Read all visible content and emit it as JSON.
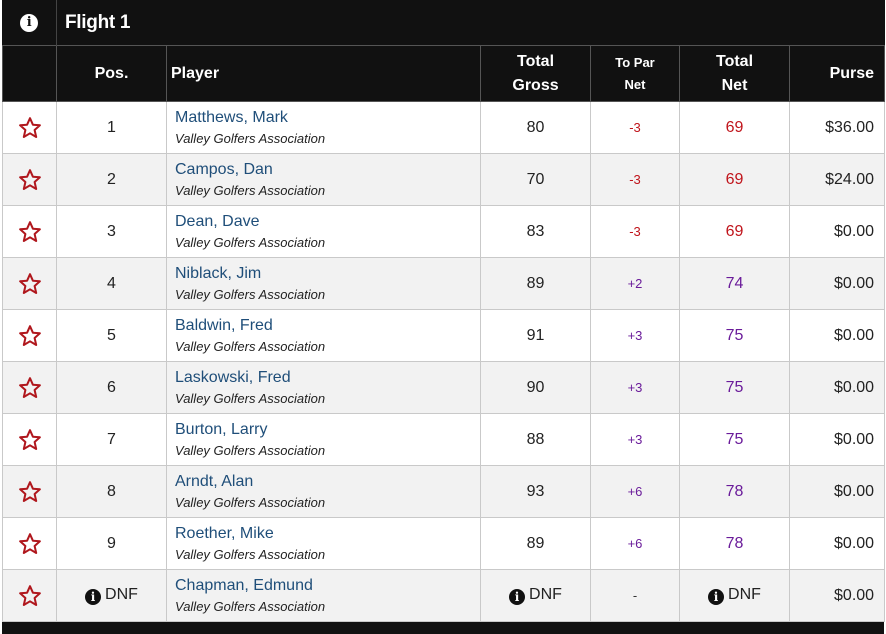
{
  "header": {
    "flight_title": "Flight 1",
    "info_icon": "info-icon"
  },
  "columns": {
    "pos": "Pos.",
    "player": "Player",
    "total_gross_1": "Total",
    "total_gross_2": "Gross",
    "to_par_net_1": "To Par",
    "to_par_net_2": "Net",
    "total_net_1": "Total",
    "total_net_2": "Net",
    "purse": "Purse"
  },
  "colors": {
    "header_bg": "#111111",
    "star": "#b0171d",
    "under_par": "#c0141b",
    "over_par": "#6a1b9a",
    "player_link": "#1f4e79"
  },
  "rows": [
    {
      "pos": "1",
      "name": "Matthews, Mark",
      "club": "Valley Golfers Association",
      "gross": "80",
      "to_par": "-3",
      "net": "69",
      "purse": "$36.00"
    },
    {
      "pos": "2",
      "name": "Campos, Dan",
      "club": "Valley Golfers Association",
      "gross": "70",
      "to_par": "-3",
      "net": "69",
      "purse": "$24.00"
    },
    {
      "pos": "3",
      "name": "Dean, Dave",
      "club": "Valley Golfers Association",
      "gross": "83",
      "to_par": "-3",
      "net": "69",
      "purse": "$0.00"
    },
    {
      "pos": "4",
      "name": "Niblack, Jim",
      "club": "Valley Golfers Association",
      "gross": "89",
      "to_par": "+2",
      "net": "74",
      "purse": "$0.00"
    },
    {
      "pos": "5",
      "name": "Baldwin, Fred",
      "club": "Valley Golfers Association",
      "gross": "91",
      "to_par": "+3",
      "net": "75",
      "purse": "$0.00"
    },
    {
      "pos": "6",
      "name": "Laskowski, Fred",
      "club": "Valley Golfers Association",
      "gross": "90",
      "to_par": "+3",
      "net": "75",
      "purse": "$0.00"
    },
    {
      "pos": "7",
      "name": "Burton, Larry",
      "club": "Valley Golfers Association",
      "gross": "88",
      "to_par": "+3",
      "net": "75",
      "purse": "$0.00"
    },
    {
      "pos": "8",
      "name": "Arndt, Alan",
      "club": "Valley Golfers Association",
      "gross": "93",
      "to_par": "+6",
      "net": "78",
      "purse": "$0.00"
    },
    {
      "pos": "9",
      "name": "Roether, Mike",
      "club": "Valley Golfers Association",
      "gross": "89",
      "to_par": "+6",
      "net": "78",
      "purse": "$0.00"
    },
    {
      "pos": "DNF",
      "name": "Chapman, Edmund",
      "club": "Valley Golfers Association",
      "gross": "DNF",
      "to_par": "-",
      "net": "DNF",
      "purse": "$0.00"
    }
  ]
}
